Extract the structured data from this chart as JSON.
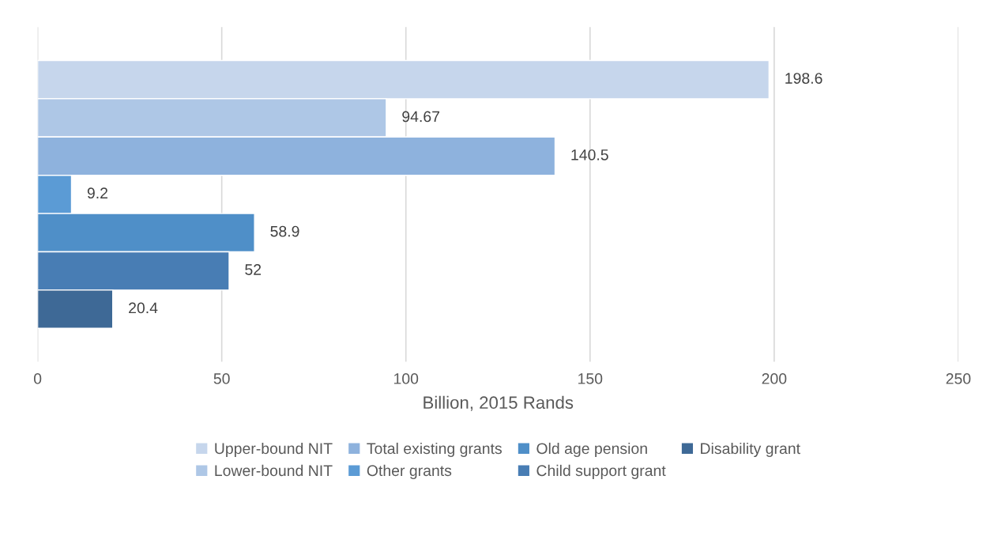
{
  "chart_data": {
    "type": "bar",
    "orientation": "horizontal",
    "categories": [
      null
    ],
    "xlabel": "Billion, 2015 Rands",
    "xlim": [
      0,
      250
    ],
    "xticks": [
      0,
      50,
      100,
      150,
      200,
      250
    ],
    "grid": "x",
    "legend": "bottom",
    "data_labels": true,
    "series": [
      {
        "name": "Upper-bound NIT",
        "color": "#c6d6ec",
        "values": [
          198.6
        ]
      },
      {
        "name": "Lower-bound NIT",
        "color": "#aec7e6",
        "values": [
          94.67
        ]
      },
      {
        "name": "Total existing grants",
        "color": "#8eb2dd",
        "values": [
          140.5
        ]
      },
      {
        "name": "Other grants",
        "color": "#5b9bd5",
        "values": [
          9.2
        ]
      },
      {
        "name": "Old age pension",
        "color": "#4f8fc8",
        "values": [
          58.9
        ]
      },
      {
        "name": "Child support grant",
        "color": "#487db4",
        "values": [
          52
        ]
      },
      {
        "name": "Disability grant",
        "color": "#3e6996",
        "values": [
          20.4
        ]
      }
    ]
  }
}
